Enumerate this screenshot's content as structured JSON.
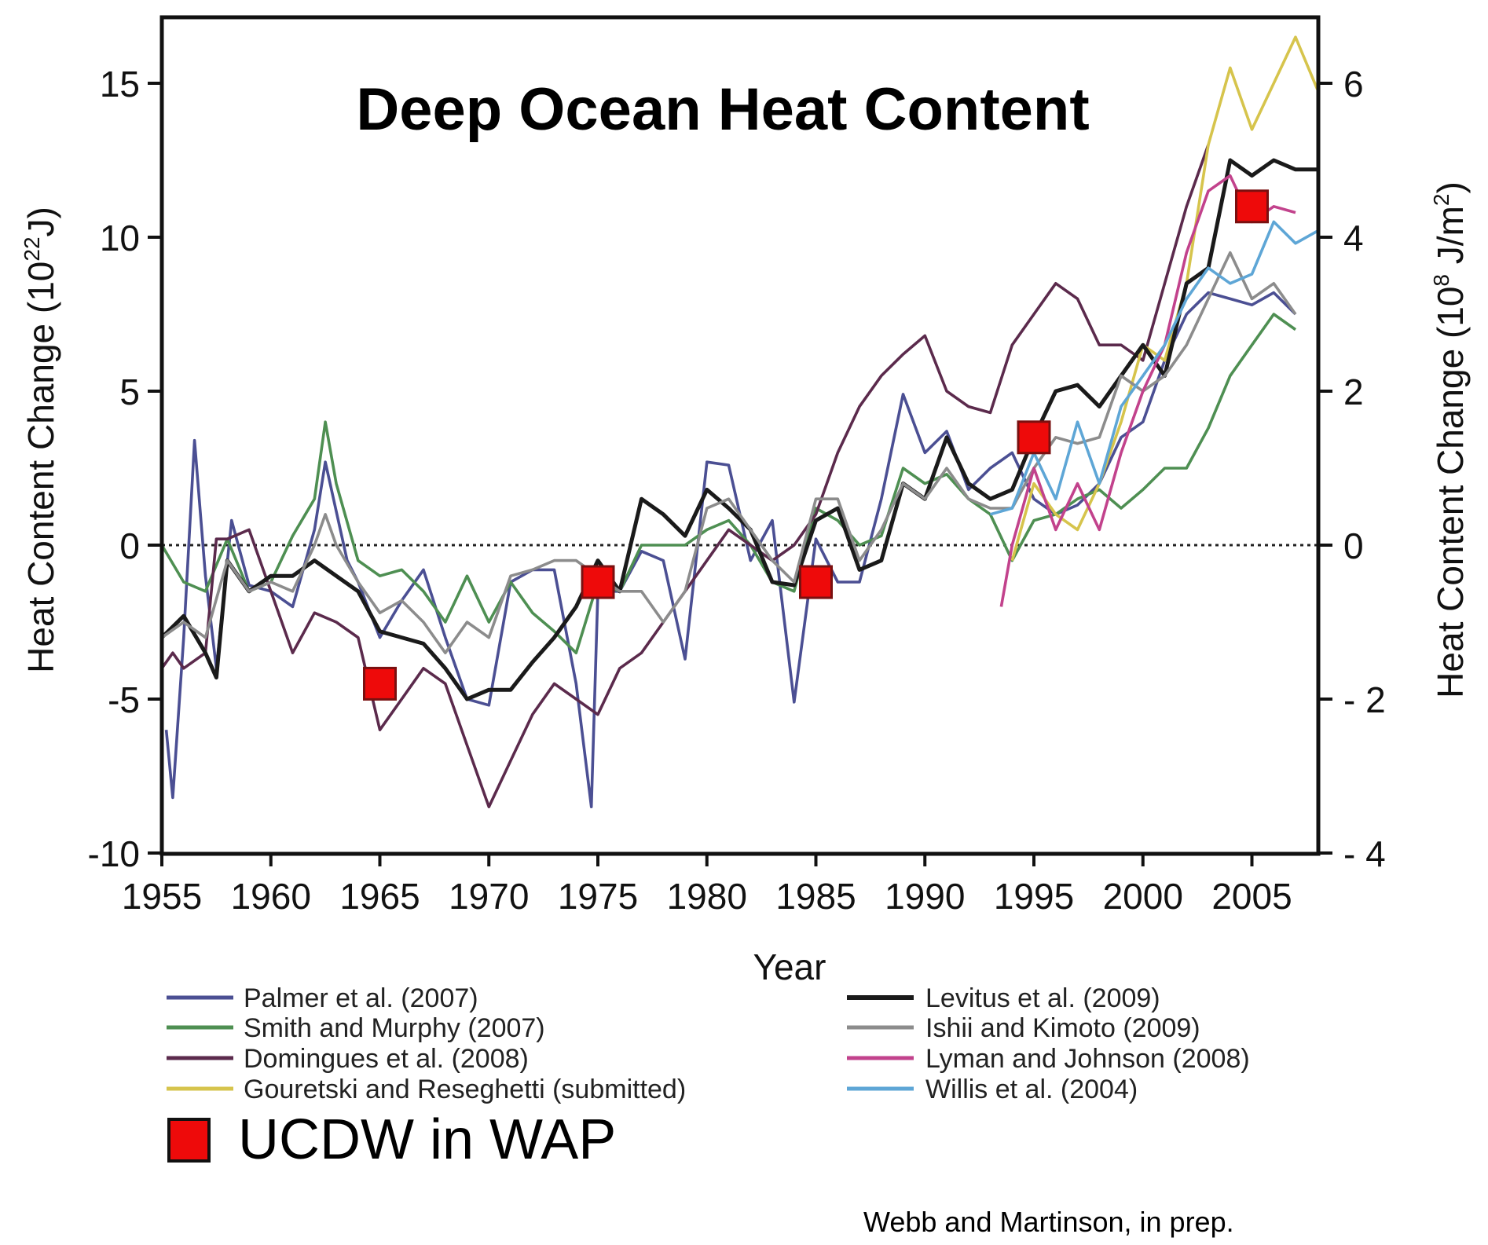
{
  "chart_data": {
    "type": "line",
    "title": "Deep Ocean Heat Content",
    "xlabel": "Year",
    "ylabel": "Heat Content Change (10",
    "ylabel_sup": "22",
    "ylabel_end": "J)",
    "y2label": "Heat Content Change (10",
    "y2label_sup": "8",
    "y2label_end": " J/m",
    "y2label_sup2": "2",
    "y2label_close": ")",
    "xlim": [
      1955,
      2008
    ],
    "ylim": [
      -10,
      17
    ],
    "y2lim": [
      -4,
      6.8
    ],
    "grid": false,
    "zero_line": "dotted",
    "x_ticks": [
      1955,
      1960,
      1965,
      1970,
      1975,
      1980,
      1985,
      1990,
      1995,
      2000,
      2005
    ],
    "x_tick_labels": [
      "1955",
      "1960",
      "1965",
      "1970",
      "1975",
      "1980",
      "1985",
      "1990",
      "1995",
      "2000",
      "2005"
    ],
    "y_ticks": [
      15,
      10,
      5,
      0,
      -5,
      -10
    ],
    "y_tick_labels": [
      "15",
      "10",
      "5",
      "0",
      "-5",
      "-10"
    ],
    "y2_ticks": [
      6,
      4,
      2,
      0,
      -2,
      -4
    ],
    "y2_tick_labels": [
      "6",
      "4",
      "2",
      "0",
      "- 2",
      "- 4"
    ],
    "legend_placement": "bottom",
    "series": [
      {
        "name": "Palmer et al. (2007)",
        "color": "#4b4f93",
        "x": [
          1955.2,
          1955.5,
          1956,
          1956.5,
          1957,
          1957.5,
          1958.2,
          1959,
          1960,
          1961,
          1962,
          1962.5,
          1963.5,
          1964,
          1965,
          1966,
          1967,
          1968,
          1969,
          1970,
          1971,
          1972,
          1973,
          1974,
          1974.7,
          1975,
          1976,
          1977,
          1978,
          1979,
          1980,
          1981,
          1982,
          1983,
          1984,
          1985,
          1986,
          1987,
          1988,
          1989,
          1990,
          1991,
          1992,
          1993,
          1994,
          1995,
          1996,
          1997,
          1998,
          1999,
          2000,
          2001,
          2002,
          2003,
          2004,
          2005,
          2006,
          2007
        ],
        "values": [
          -6,
          -8.2,
          -3,
          3.4,
          -1,
          -4,
          0.8,
          -1.3,
          -1.5,
          -2,
          0.5,
          2.7,
          -0.5,
          -1.2,
          -3,
          -1.8,
          -0.8,
          -3,
          -5,
          -5.2,
          -1.2,
          -0.8,
          -0.8,
          -4.5,
          -8.5,
          -1.5,
          -1.5,
          -0.2,
          -0.5,
          -3.7,
          2.7,
          2.6,
          -0.5,
          0.8,
          -5.1,
          0.2,
          -1.2,
          -1.2,
          1.5,
          4.9,
          3,
          3.7,
          1.8,
          2.5,
          3,
          1.5,
          1,
          1.3,
          2,
          3.5,
          4,
          6,
          7.5,
          8.2,
          8,
          7.8,
          8.2,
          7.5
        ]
      },
      {
        "name": "Smith and Murphy (2007)",
        "color": "#4e8f52",
        "x": [
          1955,
          1956,
          1957,
          1958,
          1959,
          1960,
          1961,
          1962,
          1962.5,
          1963,
          1964,
          1965,
          1966,
          1967,
          1968,
          1969,
          1970,
          1971,
          1972,
          1973,
          1974,
          1975,
          1976,
          1977,
          1978,
          1979,
          1980,
          1981,
          1982,
          1983,
          1984,
          1985,
          1986,
          1987,
          1988,
          1989,
          1990,
          1991,
          1992,
          1993,
          1994,
          1995,
          1996,
          1997,
          1998,
          1999,
          2000,
          2001,
          2002,
          2003,
          2004,
          2005,
          2006,
          2007
        ],
        "values": [
          0,
          -1.2,
          -1.5,
          0.2,
          -1.5,
          -1.2,
          0.3,
          1.5,
          4,
          2,
          -0.5,
          -1,
          -0.8,
          -1.5,
          -2.5,
          -1,
          -2.5,
          -1.2,
          -2.2,
          -2.8,
          -3.5,
          -1.2,
          -1.5,
          0,
          0,
          0,
          0.5,
          0.8,
          0,
          -1.2,
          -1.5,
          1.2,
          0.8,
          0,
          0.3,
          2.5,
          2,
          2.3,
          1.5,
          1,
          -0.5,
          0.8,
          1.0,
          1.5,
          1.8,
          1.2,
          1.8,
          2.5,
          2.5,
          3.8,
          5.5,
          6.5,
          7.5,
          7
        ]
      },
      {
        "name": "Domingues et al. (2008)",
        "color": "#5b2a4c",
        "x": [
          1955,
          1955.5,
          1956,
          1957,
          1957.5,
          1958,
          1959,
          1960,
          1961,
          1962,
          1963,
          1964,
          1965,
          1966,
          1967,
          1968,
          1969,
          1970,
          1971,
          1972,
          1973,
          1974,
          1975,
          1976,
          1977,
          1978,
          1979,
          1980,
          1981,
          1982,
          1983,
          1984,
          1985,
          1986,
          1987,
          1988,
          1989,
          1990,
          1991,
          1992,
          1993,
          1994,
          1995,
          1996,
          1997,
          1998,
          1999,
          2000,
          2001,
          2002,
          2003
        ],
        "values": [
          -4,
          -3.5,
          -4,
          -3.5,
          0.2,
          0.2,
          0.5,
          -1.5,
          -3.5,
          -2.2,
          -2.5,
          -3,
          -6,
          -5,
          -4,
          -4.5,
          -6.5,
          -8.5,
          -7,
          -5.5,
          -4.5,
          -5,
          -5.5,
          -4,
          -3.5,
          -2.5,
          -1.5,
          -0.5,
          0.5,
          0,
          -0.5,
          0,
          1,
          3,
          4.5,
          5.5,
          6.2,
          6.8,
          5,
          4.5,
          4.3,
          6.5,
          7.5,
          8.5,
          8,
          6.5,
          6.5,
          6,
          8.5,
          11,
          13
        ]
      },
      {
        "name": "Gouretski and Reseghetti (submitted)",
        "color": "#d6c44c",
        "x": [
          1994,
          1995,
          1996,
          1997,
          1998,
          1999,
          2000,
          2001,
          2002,
          2003,
          2004,
          2005,
          2006,
          2007,
          2008
        ],
        "values": [
          -0.5,
          2,
          1,
          0.5,
          2,
          4,
          6.5,
          6,
          8.5,
          13,
          15.5,
          13.5,
          15,
          16.5,
          14.8
        ]
      },
      {
        "name": "Levitus et al. (2009)",
        "color": "#1a1a1a",
        "x": [
          1955,
          1956,
          1957,
          1957.5,
          1958,
          1959,
          1960,
          1961,
          1962,
          1963,
          1964,
          1965,
          1966,
          1967,
          1968,
          1969,
          1970,
          1971,
          1972,
          1973,
          1974,
          1975,
          1976,
          1977,
          1978,
          1979,
          1980,
          1981,
          1982,
          1983,
          1984,
          1985,
          1986,
          1987,
          1988,
          1989,
          1990,
          1991,
          1992,
          1993,
          1994,
          1995,
          1996,
          1997,
          1998,
          1999,
          2000,
          2001,
          2002,
          2003,
          2004,
          2005,
          2006,
          2007,
          2008
        ],
        "values": [
          -3,
          -2.3,
          -3.5,
          -4.3,
          -0.5,
          -1.5,
          -1,
          -1,
          -0.5,
          -1,
          -1.5,
          -2.8,
          -3,
          -3.2,
          -4,
          -5,
          -4.7,
          -4.7,
          -3.8,
          -3,
          -2,
          -0.5,
          -1.5,
          1.5,
          1,
          0.3,
          1.8,
          1.2,
          0.5,
          -1.2,
          -1.3,
          0.8,
          1.2,
          -0.8,
          -0.5,
          2,
          1.5,
          3.5,
          2.0,
          1.5,
          1.8,
          3.5,
          5,
          5.2,
          4.5,
          5.5,
          6.5,
          5.5,
          8.5,
          9,
          12.5,
          12,
          12.5,
          12.2,
          12.2
        ]
      },
      {
        "name": "Ishii and Kimoto (2009)",
        "color": "#8c8c8c",
        "x": [
          1955,
          1956,
          1957,
          1958,
          1959,
          1960,
          1961,
          1962,
          1962.5,
          1963,
          1964,
          1965,
          1966,
          1967,
          1968,
          1969,
          1970,
          1971,
          1972,
          1973,
          1974,
          1975,
          1976,
          1977,
          1978,
          1979,
          1980,
          1981,
          1982,
          1983,
          1984,
          1985,
          1986,
          1987,
          1988,
          1989,
          1990,
          1991,
          1992,
          1993,
          1994,
          1995,
          1996,
          1997,
          1998,
          1999,
          2000,
          2001,
          2002,
          2003,
          2004,
          2005,
          2006,
          2007
        ],
        "values": [
          -3,
          -2.5,
          -3,
          -0.5,
          -1.5,
          -1.2,
          -1.5,
          0,
          1,
          0,
          -1.2,
          -2.2,
          -1.8,
          -2.5,
          -3.5,
          -2.5,
          -3,
          -1,
          -0.8,
          -0.5,
          -0.5,
          -1,
          -1.5,
          -1.5,
          -2.5,
          -1.5,
          1.2,
          1.5,
          0.5,
          -0.5,
          -1.2,
          1.5,
          1.5,
          -0.5,
          0.5,
          2,
          1.5,
          2.5,
          1.5,
          1.2,
          1.2,
          2.5,
          3.5,
          3.3,
          3.5,
          5.5,
          5,
          5.5,
          6.5,
          8,
          9.5,
          8,
          8.5,
          7.5
        ]
      },
      {
        "name": "Lyman and Johnson (2008)",
        "color": "#c2428c",
        "x": [
          1993.5,
          1994,
          1995,
          1996,
          1997,
          1998,
          1999,
          2000,
          2001,
          2002,
          2003,
          2004,
          2005,
          2006,
          2007
        ],
        "values": [
          -2,
          0,
          2.5,
          0.5,
          2,
          0.5,
          3,
          5,
          6.5,
          9.5,
          11.5,
          12,
          10.5,
          11,
          10.8
        ]
      },
      {
        "name": "Willis et al. (2004)",
        "color": "#5ea6d6",
        "x": [
          1993,
          1994,
          1995,
          1996,
          1997,
          1998,
          1999,
          2000,
          2001,
          2002,
          2003,
          2004,
          2005,
          2006,
          2007,
          2008
        ],
        "values": [
          1,
          1.2,
          3,
          1.5,
          4,
          2,
          4.5,
          5.5,
          6.5,
          8,
          9,
          8.5,
          8.8,
          10.5,
          9.8,
          10.2
        ]
      }
    ],
    "markers": {
      "name": "UCDW in WAP",
      "color": "#ee0a0a",
      "x": [
        1965,
        1975,
        1985,
        1995,
        2005
      ],
      "values": [
        -4.5,
        -1.2,
        -1.2,
        3.5,
        11.0
      ]
    }
  },
  "credit": "Webb and Martinson, in prep."
}
